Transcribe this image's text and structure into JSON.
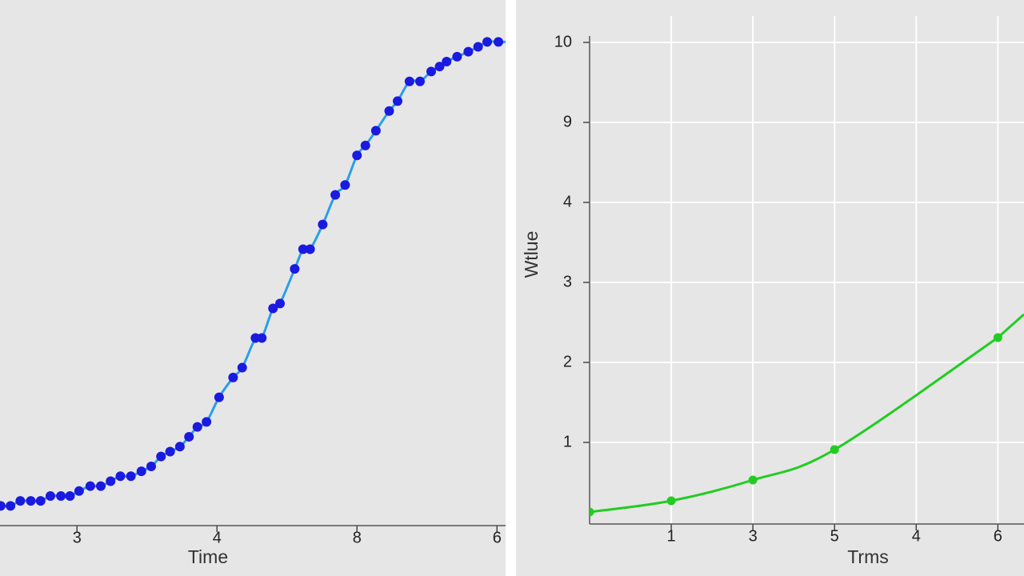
{
  "chart_data": [
    {
      "type": "line",
      "x_label": "Time",
      "x": [
        -0.09,
        0.05,
        0.19,
        0.34,
        0.48,
        0.62,
        0.77,
        0.9,
        1.03,
        1.19,
        1.34,
        1.48,
        1.62,
        1.77,
        1.92,
        2.06,
        2.2,
        2.33,
        2.47,
        2.6,
        2.72,
        2.85,
        3.03,
        3.23,
        3.36,
        3.55,
        3.64,
        3.8,
        3.9,
        4.11,
        4.23,
        4.33,
        4.51,
        4.69,
        4.83,
        5.0,
        5.12,
        5.27,
        5.46,
        5.58,
        5.75,
        5.9,
        6.06,
        6.18,
        6.28,
        6.43,
        6.59,
        6.73,
        6.86,
        7.02
      ],
      "series": [
        {
          "color": "#2a9fe6",
          "marker_color": "#1a1ae0",
          "values": [
            0.04,
            0.04,
            0.05,
            0.05,
            0.05,
            0.06,
            0.06,
            0.06,
            0.07,
            0.08,
            0.08,
            0.09,
            0.1,
            0.1,
            0.11,
            0.12,
            0.14,
            0.15,
            0.16,
            0.18,
            0.2,
            0.21,
            0.26,
            0.3,
            0.32,
            0.38,
            0.38,
            0.44,
            0.45,
            0.52,
            0.56,
            0.56,
            0.61,
            0.67,
            0.69,
            0.75,
            0.77,
            0.8,
            0.84,
            0.86,
            0.9,
            0.9,
            0.92,
            0.93,
            0.94,
            0.95,
            0.96,
            0.97,
            0.98,
            0.98
          ]
        }
      ],
      "xlim": [
        -0.1,
        7.1
      ],
      "ylim": [
        0,
        1
      ],
      "xticks": [
        {
          "value": 1,
          "label": "3"
        },
        {
          "value": 3,
          "label": "4"
        },
        {
          "value": 5,
          "label": "8"
        },
        {
          "value": 7,
          "label": "6"
        }
      ],
      "grid": false
    },
    {
      "type": "line",
      "x_label": "Trms",
      "y_label": "Wtlue",
      "x": [
        0,
        1,
        2,
        3,
        5
      ],
      "series": [
        {
          "color": "#22cc22",
          "marker_color": "#22cc22",
          "values": [
            0.13,
            0.27,
            0.53,
            0.91,
            2.31
          ]
        }
      ],
      "xlim": [
        0,
        5.32
      ],
      "ylim": [
        0,
        6
      ],
      "xticks": [
        1,
        {
          "value": 2,
          "label": "3"
        },
        {
          "value": 3,
          "label": "5"
        },
        4,
        {
          "value": 5,
          "label": "6"
        }
      ],
      "yticks": [
        {
          "value": 6,
          "label": "10"
        },
        {
          "value": 5,
          "label": "9"
        },
        4,
        3,
        2,
        1
      ],
      "grid": true
    }
  ]
}
